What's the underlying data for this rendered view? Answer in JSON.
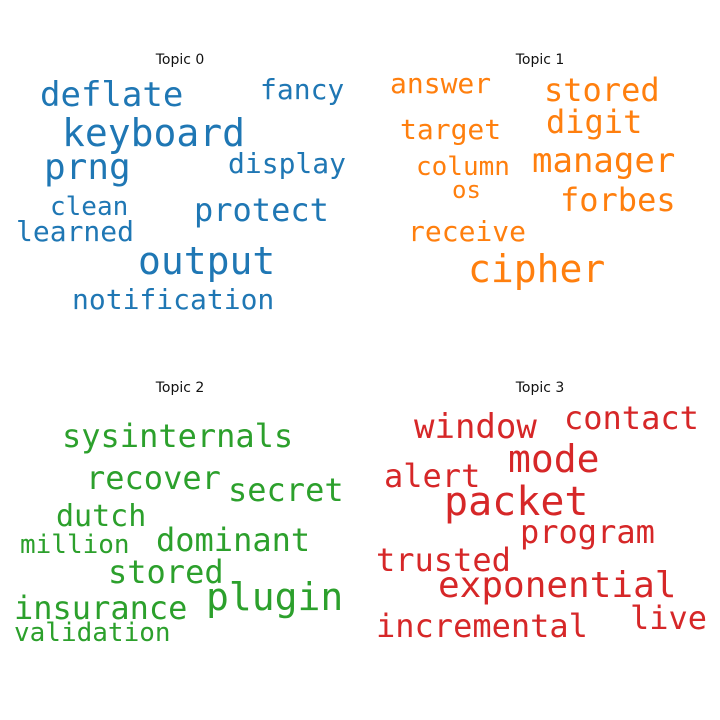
{
  "palette": {
    "topic0": "#1f77b4",
    "topic1": "#ff7f0e",
    "topic2": "#2ca02c",
    "topic3": "#d62728"
  },
  "topics": [
    {
      "title": "Topic 0",
      "words": [
        "deflate",
        "fancy",
        "keyboard",
        "prng",
        "display",
        "clean",
        "protect",
        "learned",
        "output",
        "notification"
      ]
    },
    {
      "title": "Topic 1",
      "words": [
        "answer",
        "stored",
        "target",
        "digit",
        "column",
        "manager",
        "os",
        "forbes",
        "receive",
        "cipher"
      ]
    },
    {
      "title": "Topic 2",
      "words": [
        "sysinternals",
        "recover",
        "secret",
        "dutch",
        "dominant",
        "million",
        "stored",
        "plugin",
        "insurance",
        "validation"
      ]
    },
    {
      "title": "Topic 3",
      "words": [
        "window",
        "contact",
        "mode",
        "alert",
        "packet",
        "program",
        "trusted",
        "exponential",
        "live",
        "incremental"
      ]
    }
  ]
}
